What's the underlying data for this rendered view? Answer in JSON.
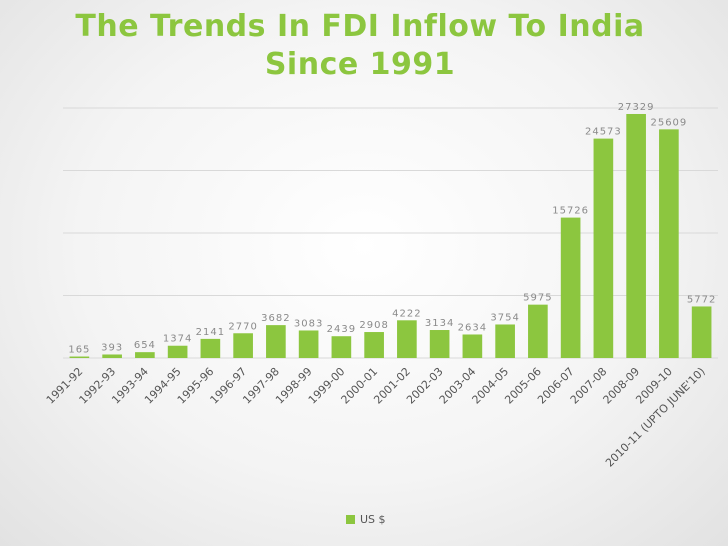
{
  "title": {
    "line1": "The Trends In FDI Inflow To India",
    "line2": "Since 1991"
  },
  "colors": {
    "bar": "#8cc63f",
    "title": "#8cc63f",
    "label": "#8a8a8a",
    "grid": "#d9d9d9"
  },
  "chart_data": {
    "type": "bar",
    "title": "The Trends In FDI Inflow To India Since 1991",
    "categories": [
      "1991-92",
      "1992-93",
      "1993-94",
      "1994-95",
      "1995-96",
      "1996-97",
      "1997-98",
      "1998-99",
      "1999-00",
      "2000-01",
      "2001-02",
      "2002-03",
      "2003-04",
      "2004-05",
      "2005-06",
      "2006-07",
      "2007-08",
      "2008-09",
      "2009-10",
      "2010-11 (UPTO JUNE'10)"
    ],
    "series": [
      {
        "name": "US $",
        "values": [
          165,
          393,
          654,
          1374,
          2141,
          2770,
          3682,
          3083,
          2439,
          2908,
          4222,
          3134,
          2634,
          3754,
          5975,
          15726,
          24573,
          27329,
          25609,
          5772
        ]
      }
    ],
    "ylim": [
      0,
      28000
    ],
    "grid": true,
    "legend_position": "bottom",
    "data_labels": true
  }
}
